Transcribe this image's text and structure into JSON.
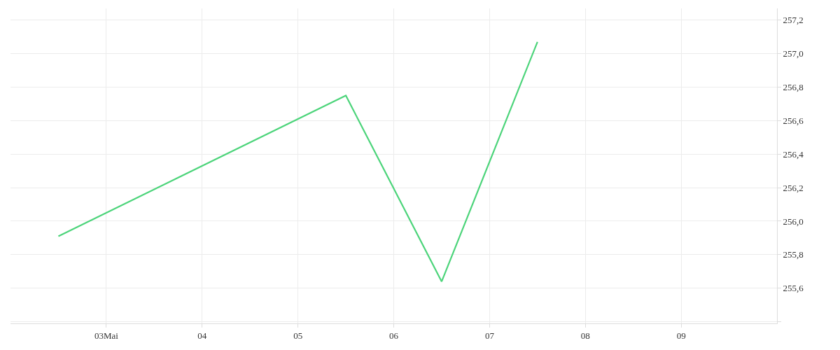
{
  "chart_data": {
    "type": "line",
    "x": [
      "--05-02T12:00",
      "--05-05T12:00",
      "--05-06T12:00",
      "--05-07T12:00"
    ],
    "series": [
      {
        "color": "#4cd47a",
        "values": [
          255.91,
          256.75,
          255.64,
          257.07
        ]
      }
    ],
    "xlim": [
      "--05-02T00:00",
      "--05-10T00:00"
    ],
    "xticks": [
      {
        "value": "--05-03",
        "label": "03Mai"
      },
      {
        "value": "--05-04",
        "label": "04"
      },
      {
        "value": "--05-05",
        "label": "05"
      },
      {
        "value": "--05-06",
        "label": "06"
      },
      {
        "value": "--05-07",
        "label": "07"
      },
      {
        "value": "--05-08",
        "label": "08"
      },
      {
        "value": "--05-09",
        "label": "09"
      }
    ],
    "ylim": [
      255.39,
      257.27
    ],
    "yticks": [
      {
        "value": 255.4,
        "label": null
      },
      {
        "value": 255.6,
        "label": "255,6"
      },
      {
        "value": 255.8,
        "label": "255,8"
      },
      {
        "value": 256.0,
        "label": "256,0"
      },
      {
        "value": 256.2,
        "label": "256,2"
      },
      {
        "value": 256.4,
        "label": "256,4"
      },
      {
        "value": 256.6,
        "label": "256,6"
      },
      {
        "value": 256.8,
        "label": "256,8"
      },
      {
        "value": 257.0,
        "label": "257,0"
      },
      {
        "value": 257.2,
        "label": "257,2"
      }
    ],
    "grid": true,
    "marker": "none",
    "line_style": "solid"
  }
}
